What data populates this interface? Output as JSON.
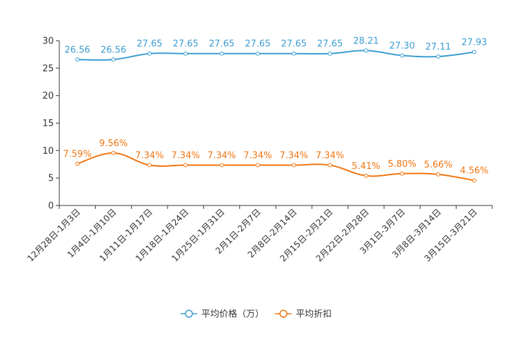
{
  "chart_data": {
    "type": "line",
    "categories": [
      "12月28日-1月3日",
      "1月4日-1月10日",
      "1月11日-1月17日",
      "1月18日-1月24日",
      "1月25日-1月31日",
      "2月1日-2月7日",
      "2月8日-2月14日",
      "2月15日-2月21日",
      "2月22日-2月28日",
      "3月1日-3月7日",
      "3月8日-3月14日",
      "3月15日-3月21日"
    ],
    "ylim": [
      0,
      30
    ],
    "yticks": [
      0,
      5,
      10,
      15,
      20,
      25,
      30
    ],
    "series": [
      {
        "name": "平均价格（万）",
        "color": "#3a9dd0",
        "values": [
          26.56,
          26.56,
          27.65,
          27.65,
          27.65,
          27.65,
          27.65,
          27.65,
          28.21,
          27.3,
          27.11,
          27.93
        ],
        "labels": [
          "26.56",
          "26.56",
          "27.65",
          "27.65",
          "27.65",
          "27.65",
          "27.65",
          "27.65",
          "28.21",
          "27.30",
          "27.11",
          "27.93"
        ]
      },
      {
        "name": "平均折扣",
        "color": "#f07511",
        "values": [
          7.59,
          9.56,
          7.34,
          7.34,
          7.34,
          7.34,
          7.34,
          7.34,
          5.41,
          5.8,
          5.66,
          4.56
        ],
        "labels": [
          "7.59%",
          "9.56%",
          "7.34%",
          "7.34%",
          "7.34%",
          "7.34%",
          "7.34%",
          "7.34%",
          "5.41%",
          "5.80%",
          "5.66%",
          "4.56%"
        ]
      }
    ],
    "legend_position": "bottom-center",
    "grid": false
  }
}
